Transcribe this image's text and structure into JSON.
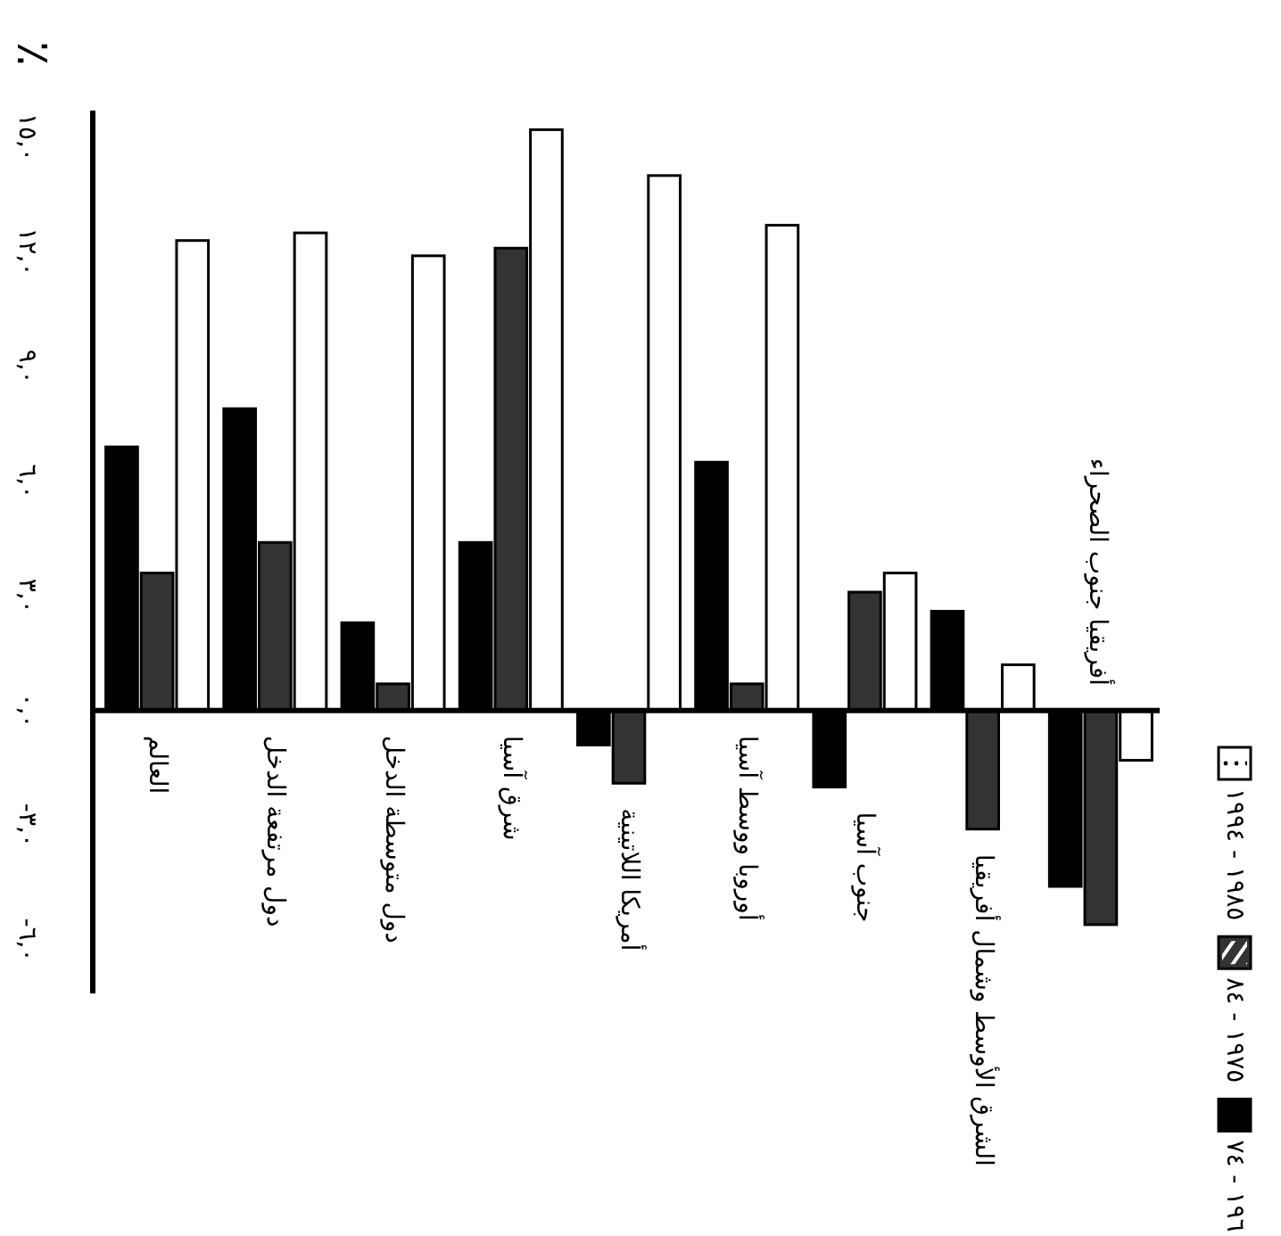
{
  "chart_data": {
    "type": "bar",
    "ylabel": "٪",
    "categories": [
      "العالم",
      "دول مرتفعة الدخل",
      "دول متوسطة الدخل",
      "شرق آسيا",
      "أمريكا اللاتينية",
      "أوروبا ووسط آسيا",
      "جنوب آسيا",
      "الشرق الأوسط وشمال أفريقيا",
      "أفريقيا جنوب الصحراء"
    ],
    "series": [
      {
        "name": "١٩٦٠ - ٧٤",
        "color": "#000000",
        "values": [
          6.9,
          7.9,
          2.3,
          4.4,
          -0.9,
          6.5,
          -2.0,
          2.6,
          -4.6
        ]
      },
      {
        "name": "١٩٧٥ - ٨٤",
        "color": "#333333",
        "values": [
          3.6,
          4.4,
          0.7,
          12.1,
          -1.9,
          0.7,
          3.1,
          -3.1,
          -5.6
        ]
      },
      {
        "name": "١٩٨٥ - ١٩٩٤",
        "color": "#ffffff",
        "values": [
          12.3,
          12.5,
          11.9,
          15.2,
          14.0,
          12.7,
          3.6,
          1.2,
          -1.3
        ]
      }
    ],
    "ylim": [
      -7.4,
      15.7
    ],
    "yticks": [
      {
        "value": 15,
        "label": "١٥,٠"
      },
      {
        "value": 12,
        "label": "١٢,٠"
      },
      {
        "value": 9,
        "label": "٩,٠"
      },
      {
        "value": 6,
        "label": "٦,٠"
      },
      {
        "value": 3,
        "label": "٣,٠"
      },
      {
        "value": 0,
        "label": "٠,٠"
      },
      {
        "value": -3,
        "label": "-٣,٠"
      },
      {
        "value": -6,
        "label": "-٦,٠"
      }
    ],
    "legend": "right",
    "grid": false
  }
}
